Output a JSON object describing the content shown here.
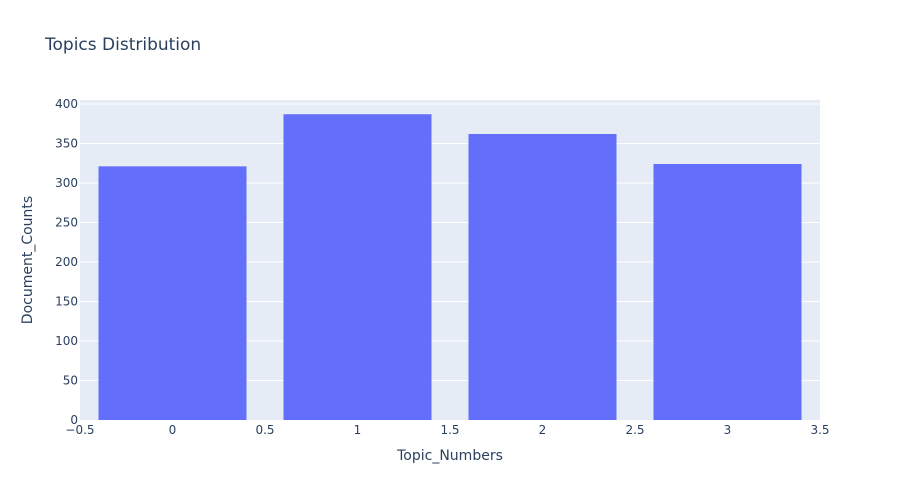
{
  "chart_data": {
    "type": "bar",
    "title": "Topics Distribution",
    "xlabel": "Topic_Numbers",
    "ylabel": "Document_Counts",
    "categories": [
      0,
      1,
      2,
      3
    ],
    "values": [
      321,
      387,
      362,
      324
    ],
    "xlim": [
      -0.5,
      3.5
    ],
    "ylim": [
      0,
      405
    ],
    "x_ticks": [
      -0.5,
      0,
      0.5,
      1,
      1.5,
      2,
      2.5,
      3,
      3.5
    ],
    "x_tick_labels": [
      "−0.5",
      "0",
      "0.5",
      "1",
      "1.5",
      "2",
      "2.5",
      "3",
      "3.5"
    ],
    "y_ticks": [
      0,
      50,
      100,
      150,
      200,
      250,
      300,
      350,
      400
    ],
    "y_tick_labels": [
      "0",
      "50",
      "100",
      "150",
      "200",
      "250",
      "300",
      "350",
      "400"
    ],
    "bar_width": 0.8,
    "grid": true,
    "colors": {
      "bar": "#636efa",
      "plot_bg": "#e5ecf6",
      "grid": "#ffffff",
      "text": "#2a3f5f"
    }
  }
}
